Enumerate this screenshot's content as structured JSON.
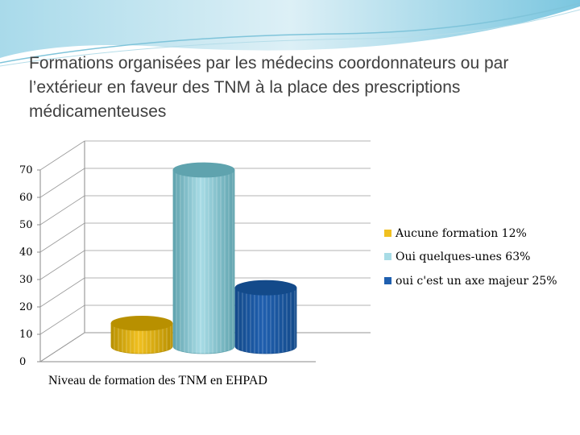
{
  "slide": {
    "title": "Formations organisées par les médecins coordonnateurs ou par l’extérieur en faveur des TNM à la place des prescriptions médicamenteuses"
  },
  "chart_data": {
    "type": "bar",
    "title": "",
    "xlabel": "",
    "ylabel": "",
    "categories": [
      "Niveau de formation des TNM en EHPAD"
    ],
    "series": [
      {
        "name": "Aucune formation 12%",
        "values": [
          14
        ],
        "color": "#F0C020",
        "dark": "#B89000"
      },
      {
        "name": "Oui quelques-unes 63%",
        "values": [
          70
        ],
        "color": "#A8DCE6",
        "dark": "#5FA3AE"
      },
      {
        "name": "oui c'est un axe majeur 25%",
        "values": [
          27
        ],
        "color": "#1F5FAF",
        "dark": "#134A8A"
      }
    ],
    "y_ticks": [
      "0",
      "10",
      "20",
      "30",
      "40",
      "50",
      "60",
      "70"
    ],
    "ylim": [
      0,
      70
    ],
    "grid": true,
    "legend_position": "right"
  }
}
